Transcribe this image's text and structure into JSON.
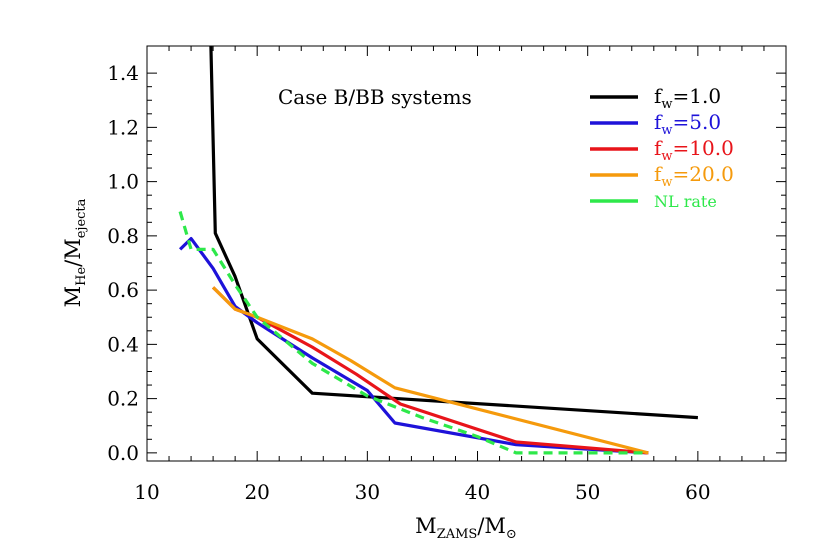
{
  "chart_data": {
    "type": "line",
    "annotation": "Case B/BB systems",
    "xlabel": {
      "main": "M",
      "sub": "ZAMS",
      "sep": "/M",
      "sym": "⊙"
    },
    "ylabel": {
      "main": "M",
      "sub1": "He",
      "sep": "/M",
      "sub2": "ejecta"
    },
    "xlim": [
      10,
      68
    ],
    "ylim": [
      -0.03,
      1.5
    ],
    "xticks": [
      10,
      20,
      30,
      40,
      50,
      60
    ],
    "yticks": [
      0.0,
      0.2,
      0.4,
      0.6,
      0.8,
      1.0,
      1.2,
      1.4
    ],
    "ytick_labels": [
      "0.0",
      "0.2",
      "0.4",
      "0.6",
      "0.8",
      "1.0",
      "1.2",
      "1.4"
    ],
    "legend_position": "top-right",
    "series": [
      {
        "label_main": "f",
        "label_sub": "w",
        "label_rest": "=1.0",
        "color": "#000000",
        "dash": "solid",
        "x": [
          15.8,
          16.2,
          18.0,
          20.0,
          25.0,
          60.0
        ],
        "y": [
          1.5,
          0.81,
          0.65,
          0.42,
          0.22,
          0.13
        ]
      },
      {
        "label_main": "f",
        "label_sub": "w",
        "label_rest": "=5.0",
        "color": "#1e12d9",
        "dash": "solid",
        "x": [
          13.0,
          14.0,
          16.0,
          18.0,
          20.0,
          25.0,
          30.0,
          32.5,
          43.5,
          55.5
        ],
        "y": [
          0.75,
          0.79,
          0.68,
          0.54,
          0.48,
          0.35,
          0.23,
          0.11,
          0.03,
          0.0
        ]
      },
      {
        "label_main": "f",
        "label_sub": "w",
        "label_rest": "=10.0",
        "color": "#e8141a",
        "dash": "solid",
        "x": [
          16.0,
          18.0,
          20.0,
          25.0,
          29.0,
          33.0,
          43.5,
          55.5
        ],
        "y": [
          0.61,
          0.53,
          0.5,
          0.39,
          0.29,
          0.18,
          0.04,
          0.0
        ]
      },
      {
        "label_main": "f",
        "label_sub": "w",
        "label_rest": "=20.0",
        "color": "#f59a0c",
        "dash": "solid",
        "x": [
          16.0,
          18.0,
          20.0,
          25.0,
          28.5,
          32.5,
          55.5
        ],
        "y": [
          0.61,
          0.53,
          0.5,
          0.42,
          0.34,
          0.24,
          0.0
        ]
      },
      {
        "label_text": "NL rate",
        "color": "#2ee84a",
        "dash": "dashed",
        "x": [
          13.0,
          14.0,
          16.0,
          18.0,
          20.0,
          25.0,
          30.0,
          35.0,
          40.0,
          43.5,
          55.5
        ],
        "y": [
          0.89,
          0.75,
          0.75,
          0.62,
          0.5,
          0.33,
          0.21,
          0.13,
          0.06,
          0.0,
          0.0
        ]
      }
    ]
  }
}
